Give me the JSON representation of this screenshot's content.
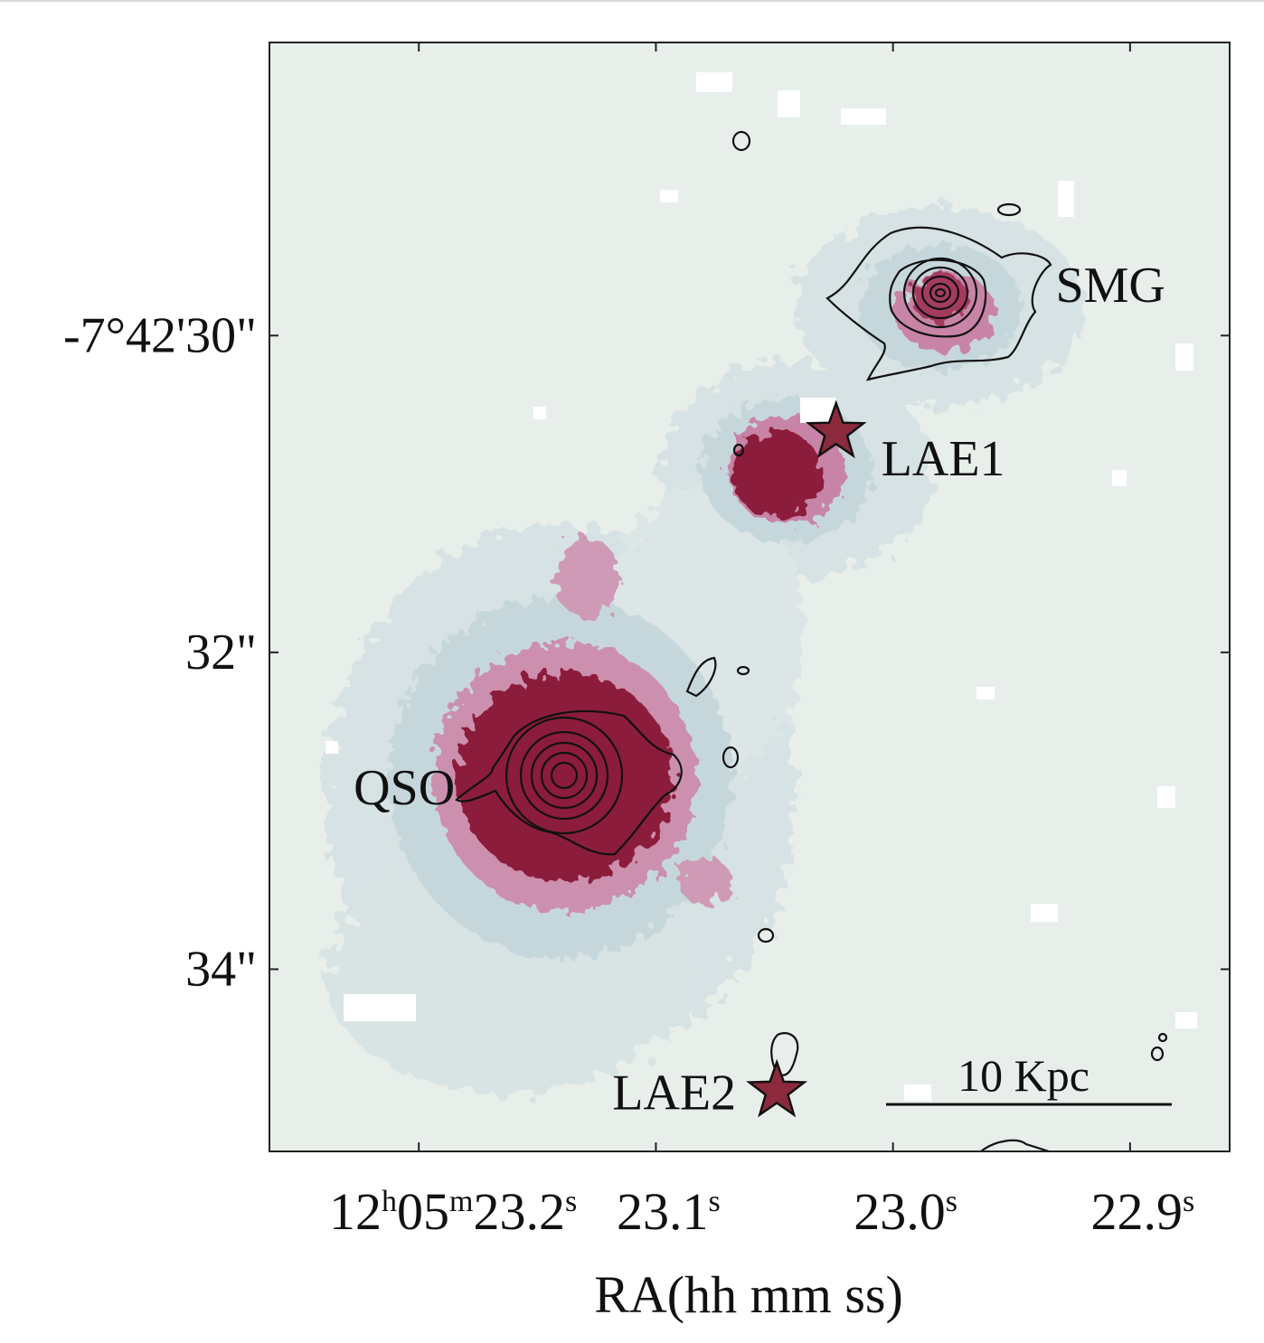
{
  "chart_data": {
    "type": "image",
    "xlabel": "RA(hh mm ss)",
    "x_ticks": [
      {
        "value": 23.2,
        "main": "12",
        "sup1": "h",
        "mid": "05",
        "sup2": "m",
        "tail": "23.2",
        "sup3": "s"
      },
      {
        "value": 23.1,
        "main": "23.1",
        "sup": "s"
      },
      {
        "value": 23.0,
        "main": "23.0",
        "sup": "s"
      },
      {
        "value": 22.9,
        "main": "22.9",
        "sup": "s"
      }
    ],
    "y_ticks": [
      {
        "value": 30,
        "label": "-7°42'30\""
      },
      {
        "value": 32,
        "label": "32\""
      },
      {
        "value": 34,
        "label": "34\""
      }
    ],
    "xlim": [
      23.263,
      22.858
    ],
    "ylim": [
      28.15,
      35.15
    ],
    "sources": [
      {
        "label": "SMG",
        "ra": 22.981,
        "dec": 29.73,
        "marker": "contours"
      },
      {
        "label": "LAE1",
        "ra": 23.024,
        "dec": 30.61,
        "marker": "star"
      },
      {
        "label": "QSO",
        "ra": 23.139,
        "dec": 32.77,
        "marker": "contours"
      },
      {
        "label": "LAE2",
        "ra": 23.049,
        "dec": 34.77,
        "marker": "star"
      }
    ],
    "scale_bar": {
      "label": "10 Kpc"
    },
    "colors": {
      "background": "#e8efea",
      "halo_light": "#c9d9dd",
      "halo_mid": "#c98aa8",
      "core": "#8c1f3b",
      "star_fill": "#8c2a3d",
      "contour": "#111111"
    }
  }
}
